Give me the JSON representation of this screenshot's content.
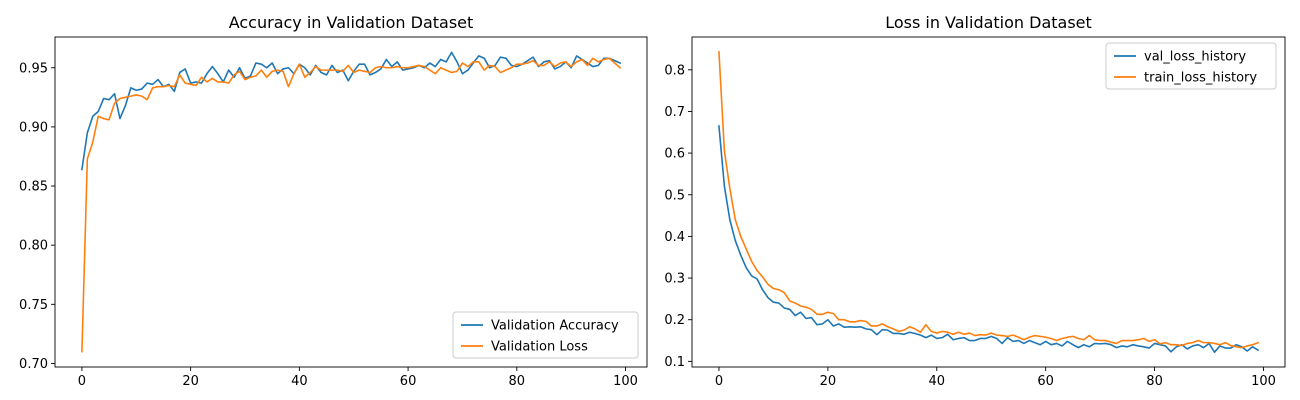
{
  "chart_data": [
    {
      "type": "line",
      "title": "Accuracy in Validation Dataset",
      "xlabel": "",
      "ylabel": "",
      "xlim": [
        -4.95,
        103.95
      ],
      "ylim": [
        0.697,
        0.976
      ],
      "xticks": [
        0,
        20,
        40,
        60,
        80,
        100
      ],
      "yticks": [
        0.7,
        0.75,
        0.8,
        0.85,
        0.9,
        0.95
      ],
      "ytick_labels": [
        "0.70",
        "0.75",
        "0.80",
        "0.85",
        "0.90",
        "0.95"
      ],
      "grid": false,
      "legend_position": "lower-right",
      "series": [
        {
          "name": "Validation Accuracy",
          "color": "#1f77b4",
          "values": [
            0.864,
            0.895,
            0.909,
            0.913,
            0.924,
            0.923,
            0.928,
            0.907,
            0.918,
            0.933,
            0.931,
            0.932,
            0.937,
            0.936,
            0.94,
            0.934,
            0.936,
            0.93,
            0.946,
            0.949,
            0.937,
            0.938,
            0.937,
            0.945,
            0.951,
            0.945,
            0.938,
            0.948,
            0.942,
            0.95,
            0.941,
            0.943,
            0.954,
            0.953,
            0.95,
            0.954,
            0.945,
            0.949,
            0.95,
            0.945,
            0.953,
            0.95,
            0.944,
            0.952,
            0.946,
            0.944,
            0.952,
            0.946,
            0.948,
            0.939,
            0.947,
            0.953,
            0.953,
            0.944,
            0.946,
            0.949,
            0.957,
            0.951,
            0.955,
            0.948,
            0.949,
            0.95,
            0.952,
            0.95,
            0.954,
            0.951,
            0.957,
            0.955,
            0.963,
            0.955,
            0.945,
            0.948,
            0.954,
            0.96,
            0.958,
            0.95,
            0.952,
            0.959,
            0.958,
            0.952,
            0.951,
            0.953,
            0.956,
            0.959,
            0.951,
            0.955,
            0.956,
            0.949,
            0.951,
            0.955,
            0.95,
            0.96,
            0.957,
            0.954,
            0.951,
            0.952,
            0.958,
            0.958,
            0.956,
            0.954
          ]
        },
        {
          "name": "Validation Loss",
          "color": "#ff7f0e",
          "values": [
            0.71,
            0.873,
            0.887,
            0.909,
            0.907,
            0.906,
            0.92,
            0.924,
            0.925,
            0.926,
            0.927,
            0.926,
            0.923,
            0.933,
            0.934,
            0.934,
            0.935,
            0.934,
            0.944,
            0.937,
            0.936,
            0.935,
            0.942,
            0.938,
            0.941,
            0.938,
            0.938,
            0.937,
            0.944,
            0.947,
            0.94,
            0.942,
            0.943,
            0.948,
            0.942,
            0.947,
            0.948,
            0.947,
            0.934,
            0.945,
            0.953,
            0.942,
            0.946,
            0.951,
            0.948,
            0.948,
            0.948,
            0.948,
            0.947,
            0.952,
            0.946,
            0.948,
            0.947,
            0.946,
            0.95,
            0.951,
            0.95,
            0.95,
            0.951,
            0.95,
            0.95,
            0.951,
            0.952,
            0.951,
            0.948,
            0.945,
            0.95,
            0.948,
            0.946,
            0.947,
            0.954,
            0.951,
            0.955,
            0.955,
            0.948,
            0.952,
            0.951,
            0.946,
            0.948,
            0.95,
            0.953,
            0.953,
            0.954,
            0.956,
            0.952,
            0.952,
            0.955,
            0.951,
            0.954,
            0.955,
            0.951,
            0.955,
            0.957,
            0.952,
            0.958,
            0.955,
            0.957,
            0.958,
            0.954,
            0.95
          ]
        }
      ]
    },
    {
      "type": "line",
      "title": "Loss in Validation Dataset",
      "xlabel": "",
      "ylabel": "",
      "xlim": [
        -4.95,
        103.95
      ],
      "ylim": [
        0.0865,
        0.8787
      ],
      "xticks": [
        0,
        20,
        40,
        60,
        80,
        100
      ],
      "yticks": [
        0.1,
        0.2,
        0.3,
        0.4,
        0.5,
        0.6,
        0.7,
        0.8
      ],
      "ytick_labels": [
        "0.1",
        "0.2",
        "0.3",
        "0.4",
        "0.5",
        "0.6",
        "0.7",
        "0.8"
      ],
      "grid": false,
      "legend_position": "upper-right",
      "series": [
        {
          "name": "val_loss_history",
          "color": "#1f77b4",
          "values": [
            0.665,
            0.52,
            0.44,
            0.39,
            0.355,
            0.325,
            0.305,
            0.298,
            0.272,
            0.253,
            0.242,
            0.24,
            0.228,
            0.225,
            0.21,
            0.218,
            0.203,
            0.205,
            0.188,
            0.19,
            0.2,
            0.185,
            0.19,
            0.182,
            0.183,
            0.182,
            0.183,
            0.178,
            0.176,
            0.164,
            0.176,
            0.175,
            0.167,
            0.167,
            0.165,
            0.17,
            0.167,
            0.163,
            0.157,
            0.163,
            0.155,
            0.157,
            0.165,
            0.152,
            0.155,
            0.157,
            0.15,
            0.15,
            0.155,
            0.155,
            0.16,
            0.155,
            0.143,
            0.157,
            0.148,
            0.15,
            0.143,
            0.15,
            0.145,
            0.14,
            0.148,
            0.14,
            0.143,
            0.137,
            0.148,
            0.14,
            0.133,
            0.14,
            0.135,
            0.143,
            0.142,
            0.143,
            0.14,
            0.133,
            0.137,
            0.135,
            0.14,
            0.137,
            0.135,
            0.132,
            0.143,
            0.14,
            0.137,
            0.123,
            0.135,
            0.14,
            0.13,
            0.137,
            0.14,
            0.133,
            0.143,
            0.122,
            0.137,
            0.132,
            0.132,
            0.14,
            0.135,
            0.125,
            0.135,
            0.127
          ]
        },
        {
          "name": "train_loss_history",
          "color": "#ff7f0e",
          "values": [
            0.843,
            0.605,
            0.515,
            0.44,
            0.4,
            0.37,
            0.34,
            0.318,
            0.303,
            0.285,
            0.275,
            0.272,
            0.265,
            0.245,
            0.24,
            0.233,
            0.23,
            0.225,
            0.213,
            0.213,
            0.218,
            0.215,
            0.2,
            0.2,
            0.195,
            0.195,
            0.198,
            0.196,
            0.185,
            0.185,
            0.19,
            0.183,
            0.178,
            0.172,
            0.175,
            0.183,
            0.178,
            0.17,
            0.188,
            0.172,
            0.168,
            0.172,
            0.17,
            0.165,
            0.17,
            0.165,
            0.168,
            0.162,
            0.164,
            0.163,
            0.168,
            0.163,
            0.162,
            0.16,
            0.163,
            0.158,
            0.152,
            0.158,
            0.162,
            0.16,
            0.158,
            0.155,
            0.15,
            0.155,
            0.158,
            0.16,
            0.155,
            0.152,
            0.162,
            0.152,
            0.15,
            0.15,
            0.146,
            0.143,
            0.15,
            0.15,
            0.15,
            0.152,
            0.155,
            0.148,
            0.152,
            0.142,
            0.145,
            0.14,
            0.14,
            0.138,
            0.143,
            0.145,
            0.15,
            0.145,
            0.145,
            0.143,
            0.14,
            0.145,
            0.138,
            0.135,
            0.133,
            0.137,
            0.14,
            0.145
          ]
        }
      ]
    }
  ]
}
